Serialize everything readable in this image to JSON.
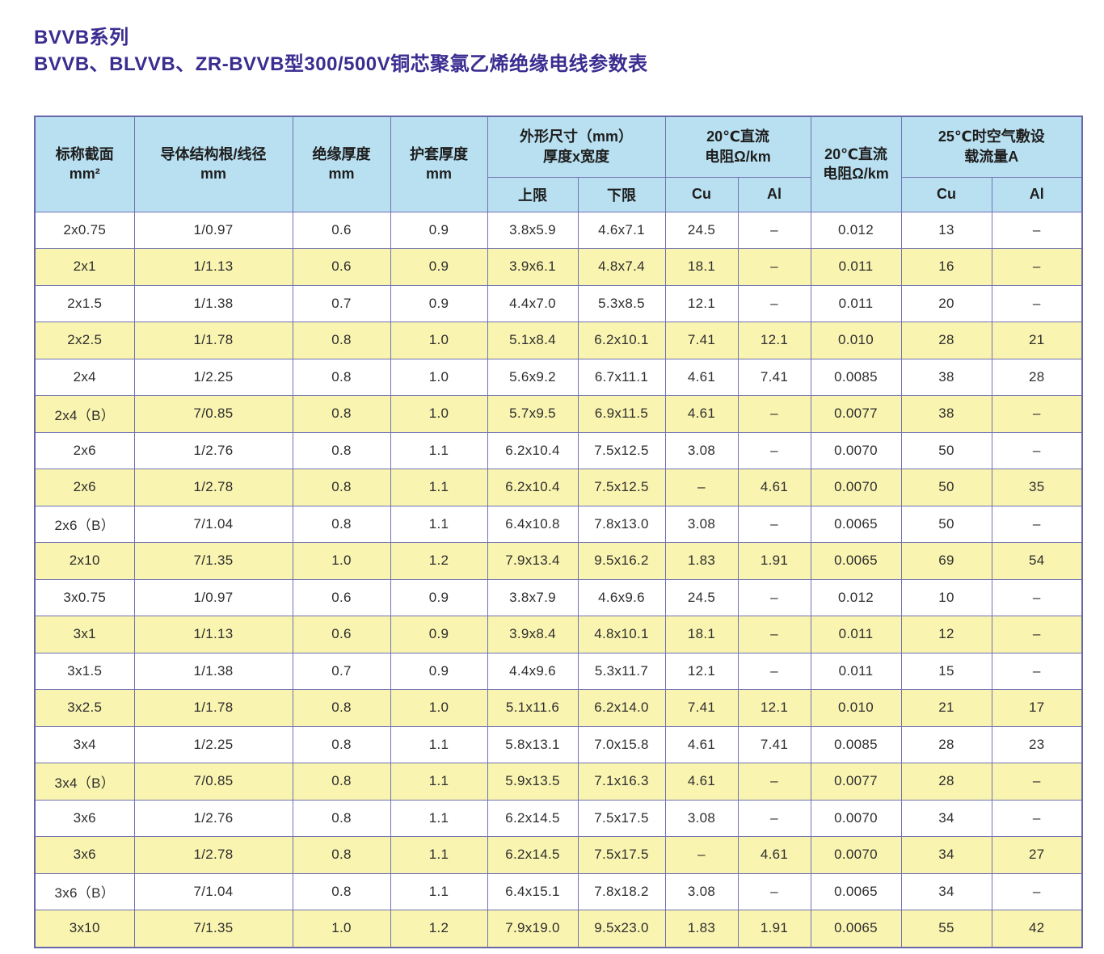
{
  "title": {
    "line1": "BVVB系列",
    "line2": "BVVB、BLVVB、ZR-BVVB型300/500V铜芯聚氯乙烯绝缘电线参数表"
  },
  "colors": {
    "title_text": "#3a2d90",
    "header_bg": "#b9e0f1",
    "row_alt_bg": "#f9f4b0",
    "row_bg": "#ffffff",
    "grid_border": "#7272b4"
  },
  "table": {
    "headers": {
      "nominal_section": {
        "line1": "标称截面",
        "line2": "mm²"
      },
      "conductor_structure": {
        "line1": "导体结构根/线径",
        "line2": "mm"
      },
      "insulation_thickness": {
        "line1": "绝缘厚度",
        "line2": "mm"
      },
      "sheath_thickness": {
        "line1": "护套厚度",
        "line2": "mm"
      },
      "dimensions": {
        "line1": "外形尺寸（mm）",
        "line2": "厚度x宽度"
      },
      "dc_resistance_group": {
        "line1": "20℃直流",
        "line2": "电阻Ω/km"
      },
      "dc_resistance_single": {
        "line1": "20℃直流",
        "line2": "电阻Ω/km"
      },
      "ampacity": {
        "line1": "25℃时空气敷设",
        "line2": "载流量A"
      },
      "sub": {
        "upper": "上限",
        "lower": "下限",
        "cu1": "Cu",
        "al1": "Al",
        "cu2": "Cu",
        "al2": "Al"
      }
    },
    "rows": [
      [
        "2x0.75",
        "1/0.97",
        "0.6",
        "0.9",
        "3.8x5.9",
        "4.6x7.1",
        "24.5",
        "–",
        "0.012",
        "13",
        "–"
      ],
      [
        "2x1",
        "1/1.13",
        "0.6",
        "0.9",
        "3.9x6.1",
        "4.8x7.4",
        "18.1",
        "–",
        "0.011",
        "16",
        "–"
      ],
      [
        "2x1.5",
        "1/1.38",
        "0.7",
        "0.9",
        "4.4x7.0",
        "5.3x8.5",
        "12.1",
        "–",
        "0.011",
        "20",
        "–"
      ],
      [
        "2x2.5",
        "1/1.78",
        "0.8",
        "1.0",
        "5.1x8.4",
        "6.2x10.1",
        "7.41",
        "12.1",
        "0.010",
        "28",
        "21"
      ],
      [
        "2x4",
        "1/2.25",
        "0.8",
        "1.0",
        "5.6x9.2",
        "6.7x11.1",
        "4.61",
        "7.41",
        "0.0085",
        "38",
        "28"
      ],
      [
        "2x4（B）",
        "7/0.85",
        "0.8",
        "1.0",
        "5.7x9.5",
        "6.9x11.5",
        "4.61",
        "–",
        "0.0077",
        "38",
        "–"
      ],
      [
        "2x6",
        "1/2.76",
        "0.8",
        "1.1",
        "6.2x10.4",
        "7.5x12.5",
        "3.08",
        "–",
        "0.0070",
        "50",
        "–"
      ],
      [
        "2x6",
        "1/2.78",
        "0.8",
        "1.1",
        "6.2x10.4",
        "7.5x12.5",
        "–",
        "4.61",
        "0.0070",
        "50",
        "35"
      ],
      [
        "2x6（B）",
        "7/1.04",
        "0.8",
        "1.1",
        "6.4x10.8",
        "7.8x13.0",
        "3.08",
        "–",
        "0.0065",
        "50",
        "–"
      ],
      [
        "2x10",
        "7/1.35",
        "1.0",
        "1.2",
        "7.9x13.4",
        "9.5x16.2",
        "1.83",
        "1.91",
        "0.0065",
        "69",
        "54"
      ],
      [
        "3x0.75",
        "1/0.97",
        "0.6",
        "0.9",
        "3.8x7.9",
        "4.6x9.6",
        "24.5",
        "–",
        "0.012",
        "10",
        "–"
      ],
      [
        "3x1",
        "1/1.13",
        "0.6",
        "0.9",
        "3.9x8.4",
        "4.8x10.1",
        "18.1",
        "–",
        "0.011",
        "12",
        "–"
      ],
      [
        "3x1.5",
        "1/1.38",
        "0.7",
        "0.9",
        "4.4x9.6",
        "5.3x11.7",
        "12.1",
        "–",
        "0.011",
        "15",
        "–"
      ],
      [
        "3x2.5",
        "1/1.78",
        "0.8",
        "1.0",
        "5.1x11.6",
        "6.2x14.0",
        "7.41",
        "12.1",
        "0.010",
        "21",
        "17"
      ],
      [
        "3x4",
        "1/2.25",
        "0.8",
        "1.1",
        "5.8x13.1",
        "7.0x15.8",
        "4.61",
        "7.41",
        "0.0085",
        "28",
        "23"
      ],
      [
        "3x4（B）",
        "7/0.85",
        "0.8",
        "1.1",
        "5.9x13.5",
        "7.1x16.3",
        "4.61",
        "–",
        "0.0077",
        "28",
        "–"
      ],
      [
        "3x6",
        "1/2.76",
        "0.8",
        "1.1",
        "6.2x14.5",
        "7.5x17.5",
        "3.08",
        "–",
        "0.0070",
        "34",
        "–"
      ],
      [
        "3x6",
        "1/2.78",
        "0.8",
        "1.1",
        "6.2x14.5",
        "7.5x17.5",
        "–",
        "4.61",
        "0.0070",
        "34",
        "27"
      ],
      [
        "3x6（B）",
        "7/1.04",
        "0.8",
        "1.1",
        "6.4x15.1",
        "7.8x18.2",
        "3.08",
        "–",
        "0.0065",
        "34",
        "–"
      ],
      [
        "3x10",
        "7/1.35",
        "1.0",
        "1.2",
        "7.9x19.0",
        "9.5x23.0",
        "1.83",
        "1.91",
        "0.0065",
        "55",
        "42"
      ]
    ]
  }
}
